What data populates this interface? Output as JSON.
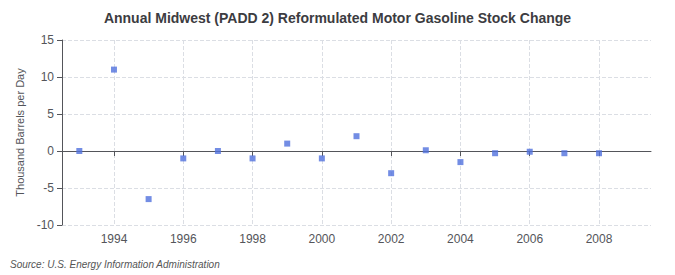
{
  "chart_data": {
    "type": "scatter",
    "title": "Annual Midwest (PADD 2) Reformulated Motor Gasoline Stock Change",
    "ylabel": "Thousand Barrels per Day",
    "source": "Source: U.S. Energy Information Administration",
    "x": [
      1993,
      1994,
      1995,
      1996,
      1997,
      1998,
      1999,
      2000,
      2001,
      2002,
      2003,
      2004,
      2005,
      2006,
      2007,
      2008
    ],
    "values": [
      0.0,
      11.0,
      -6.5,
      -1.0,
      0.0,
      -1.0,
      1.0,
      -1.0,
      2.0,
      -3.0,
      0.1,
      -1.5,
      -0.3,
      -0.1,
      -0.3,
      -0.3
    ],
    "marker": "square",
    "xlim": [
      1992.5,
      2009.5
    ],
    "xticks": [
      1994,
      1996,
      1998,
      2000,
      2002,
      2004,
      2006,
      2008
    ],
    "ylim": [
      -10,
      15
    ],
    "yticks": [
      -10,
      -5,
      0,
      5,
      10,
      15
    ],
    "grid": true
  }
}
